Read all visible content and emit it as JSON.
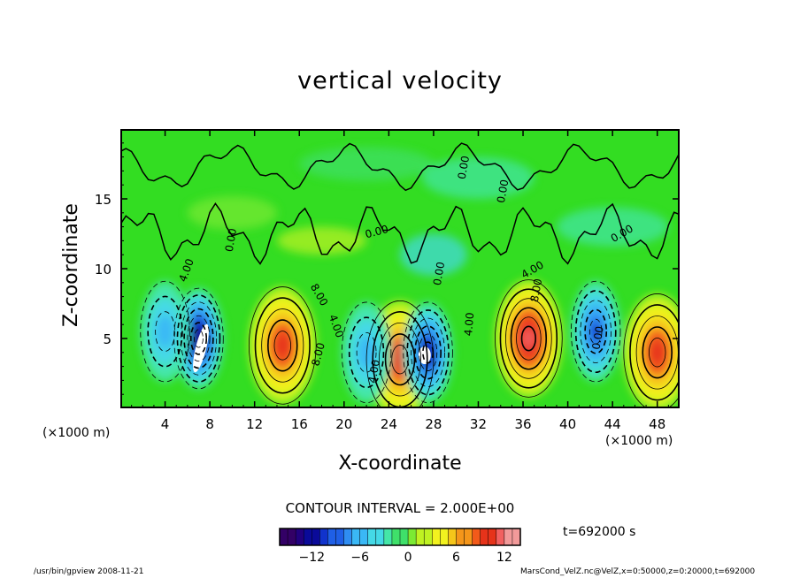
{
  "title": "vertical velocity",
  "xlabel": "X-coordinate",
  "ylabel": "Z-coordinate",
  "x_unit_left": "(×1000 m)",
  "x_unit_right": "(×1000 m)",
  "contour_interval_text": "CONTOUR INTERVAL = 2.000E+00",
  "time_text": "t=692000 s",
  "footer_left": "/usr/bin/gpview   2008-11-21",
  "footer_right": "MarsCond_VelZ.nc@VelZ,x=0:50000,z=0:20000,t=692000",
  "colors": {
    "background_field": "#33dd22",
    "scale": [
      "#330066",
      "#22007f",
      "#0a0a99",
      "#1133cc",
      "#1f5fe6",
      "#2f8df2",
      "#3ab8f5",
      "#44d9e6",
      "#44e6a8",
      "#3fe06a",
      "#7bea33",
      "#bff222",
      "#f2f21f",
      "#f5c61a",
      "#f5961a",
      "#f25a1a",
      "#e6331a",
      "#f26060",
      "#f29a9a"
    ]
  },
  "chart_data": {
    "type": "heatmap",
    "title": "vertical velocity",
    "xlabel": "X-coordinate",
    "ylabel": "Z-coordinate",
    "xlim": [
      0,
      50
    ],
    "ylim": [
      0,
      20
    ],
    "x_ticks": [
      4,
      8,
      12,
      16,
      20,
      24,
      28,
      32,
      36,
      40,
      44,
      48
    ],
    "y_ticks": [
      5,
      10,
      15
    ],
    "contour_interval": 2.0,
    "colorbar_ticks": [
      -12,
      -6,
      0,
      6,
      12
    ],
    "colorbar_range": [
      -16,
      14
    ],
    "contour_labels": [
      "4.00",
      "0.00",
      "8.00",
      "4.00",
      "8.00",
      "0.00",
      "4.00",
      "0.00",
      "0.00",
      "4.00",
      "0.00",
      "8.00",
      "4.00",
      "0.00",
      "0.00"
    ],
    "features": [
      {
        "kind": "updraft",
        "x": 14.5,
        "z": 4.5,
        "peak": 10
      },
      {
        "kind": "updraft",
        "x": 36.5,
        "z": 5.0,
        "peak": 12
      },
      {
        "kind": "updraft",
        "x": 48.0,
        "z": 4.0,
        "peak": 10
      },
      {
        "kind": "updraft",
        "x": 25.0,
        "z": 3.5,
        "peak": 10
      },
      {
        "kind": "downdraft",
        "x": 7.0,
        "z": 5.0,
        "peak": -14
      },
      {
        "kind": "downdraft",
        "x": 27.5,
        "z": 4.0,
        "peak": -12
      },
      {
        "kind": "downdraft",
        "x": 42.5,
        "z": 5.5,
        "peak": -10
      },
      {
        "kind": "downdraft",
        "x": 4.0,
        "z": 5.5,
        "peak": -6
      },
      {
        "kind": "downdraft",
        "x": 22.0,
        "z": 4.0,
        "peak": -6
      }
    ]
  }
}
